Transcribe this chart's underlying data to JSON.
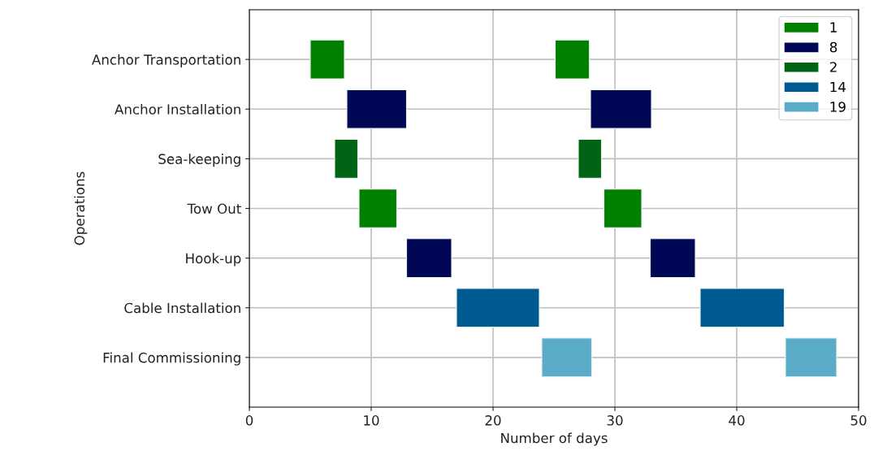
{
  "chart_data": {
    "type": "bar",
    "orientation": "horizontal",
    "xlabel": "Number of days",
    "ylabel": "Operations",
    "categories": [
      "Anchor Transportation",
      "Anchor Installation",
      "Sea-keeping",
      "Tow Out",
      "Hook-up",
      "Cable Installation",
      "Final Commissioning"
    ],
    "series": [
      {
        "name": "1",
        "color": "#008000",
        "values": [
          2.8,
          null,
          null,
          3.1,
          null,
          null,
          null
        ],
        "base": [
          5,
          null,
          null,
          9,
          null,
          null,
          null
        ]
      },
      {
        "name": "8",
        "color": "#000856",
        "values": [
          null,
          4.9,
          null,
          null,
          3.7,
          null,
          null
        ],
        "base": [
          null,
          8,
          null,
          null,
          12.9,
          null,
          null
        ]
      },
      {
        "name": "2",
        "color": "#006414",
        "values": [
          null,
          null,
          1.9,
          null,
          null,
          null,
          null
        ],
        "base": [
          null,
          null,
          7,
          null,
          null,
          null,
          null
        ]
      },
      {
        "name": "14",
        "color": "#005a92",
        "values": [
          null,
          null,
          null,
          null,
          null,
          6.8,
          null
        ],
        "base": [
          null,
          null,
          null,
          null,
          null,
          17,
          null
        ]
      },
      {
        "name": "19",
        "color": "#5bacc8",
        "values": [
          null,
          null,
          null,
          null,
          null,
          null,
          4.1
        ],
        "base": [
          null,
          null,
          null,
          null,
          null,
          null,
          24
        ]
      },
      {
        "color": "#008000",
        "values": [
          2.8,
          null,
          null,
          3.1,
          null,
          null,
          null
        ],
        "base": [
          25.1,
          null,
          null,
          29.1,
          null,
          null,
          null
        ]
      },
      {
        "color": "#000856",
        "values": [
          null,
          5,
          null,
          null,
          3.7,
          null,
          null
        ],
        "base": [
          null,
          28,
          null,
          null,
          32.9,
          null,
          null
        ]
      },
      {
        "color": "#006414",
        "values": [
          null,
          null,
          1.9,
          null,
          null,
          null,
          null
        ],
        "base": [
          null,
          null,
          27,
          null,
          null,
          null,
          null
        ]
      },
      {
        "color": "#005a92",
        "values": [
          null,
          null,
          null,
          null,
          null,
          6.9,
          null
        ],
        "base": [
          null,
          null,
          null,
          null,
          null,
          37,
          null
        ]
      },
      {
        "color": "#5bacc8",
        "values": [
          null,
          null,
          null,
          null,
          null,
          null,
          4.2
        ],
        "base": [
          null,
          null,
          null,
          null,
          null,
          null,
          44
        ]
      }
    ],
    "xlim": [
      0,
      50
    ],
    "xticks": [
      0,
      10,
      20,
      30,
      40,
      50
    ],
    "grid": true,
    "legend": "top right"
  }
}
